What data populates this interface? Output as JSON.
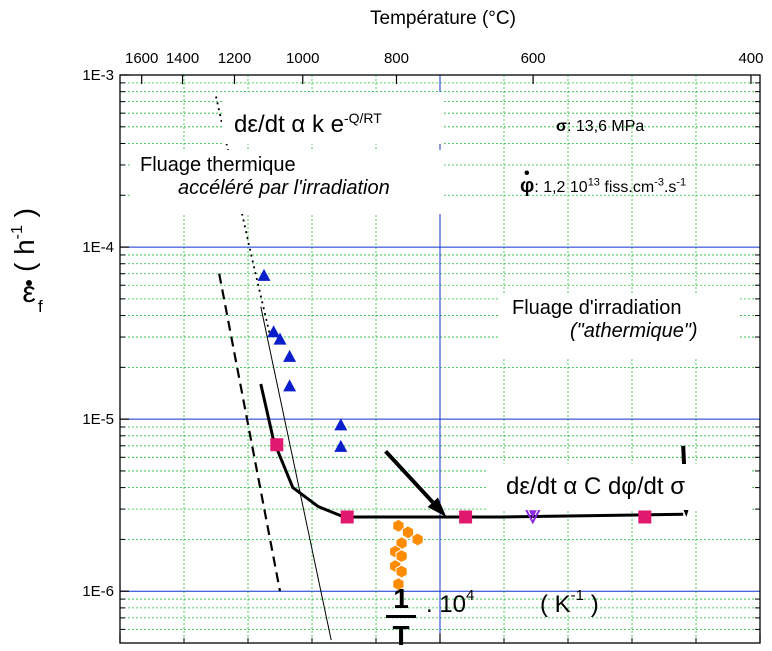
{
  "chart_data": {
    "type": "scatter",
    "title": "",
    "top_axis": {
      "label": "Température (°C)",
      "ticks": [
        1600,
        1400,
        1200,
        1000,
        800,
        600,
        400
      ]
    },
    "x_axis": {
      "scale": "linear",
      "range": [
        5,
        15
      ],
      "ticks": [
        "5",
        "10",
        "15"
      ],
      "label_numerator": "1",
      "label_denominator": "T",
      "label_suffix": ". 10",
      "label_power": "4",
      "label_unit": "( K",
      "label_unit_power": "-1",
      "label_unit_close": ")"
    },
    "y_axis": {
      "scale": "log",
      "range": [
        5e-07,
        0.001
      ],
      "ticks": [
        "1E-6",
        "1E-5",
        "1E-4",
        "1E-3"
      ],
      "label_symbol": "ε",
      "label_sub": "f",
      "label_unit": "( h",
      "label_unit_power": "-1",
      "label_unit_close": ")"
    },
    "grid": true,
    "series": [
      {
        "marker": "triangle-up",
        "color": "#0a1ecc",
        "points": [
          [
            7.25,
            6.8e-05
          ],
          [
            7.4,
            3.2e-05
          ],
          [
            7.5,
            2.9e-05
          ],
          [
            7.65,
            2.3e-05
          ],
          [
            7.65,
            1.55e-05
          ],
          [
            8.45,
            9.2e-06
          ],
          [
            8.45,
            6.9e-06
          ]
        ]
      },
      {
        "marker": "square",
        "color": "#e0186e",
        "points": [
          [
            7.45,
            7.1e-06
          ],
          [
            8.55,
            2.7e-06
          ],
          [
            10.4,
            2.7e-06
          ],
          [
            13.2,
            2.7e-06
          ]
        ]
      },
      {
        "marker": "triangle-down",
        "color": "#8a2be2",
        "points": [
          [
            11.45,
            2.8e-06
          ]
        ]
      },
      {
        "marker": "hexagon",
        "color": "#ff8c00",
        "points": [
          [
            9.35,
            2.4e-06
          ],
          [
            9.5,
            2.2e-06
          ],
          [
            9.65,
            2e-06
          ],
          [
            9.4,
            1.9e-06
          ],
          [
            9.3,
            1.7e-06
          ],
          [
            9.4,
            1.6e-06
          ],
          [
            9.3,
            1.4e-06
          ],
          [
            9.4,
            1.3e-06
          ],
          [
            9.35,
            1.1e-06
          ]
        ]
      }
    ],
    "lines": [
      {
        "name": "fit",
        "style": "thick-solid",
        "points": [
          [
            7.2,
            1.6e-05
          ],
          [
            7.4,
            7.5e-06
          ],
          [
            7.7,
            4e-06
          ],
          [
            8.1,
            3.1e-06
          ],
          [
            8.5,
            2.7e-06
          ],
          [
            9.5,
            2.7e-06
          ],
          [
            11,
            2.7e-06
          ],
          [
            13.8,
            2.8e-06
          ]
        ]
      },
      {
        "name": "dashed",
        "style": "dashed",
        "points": [
          [
            6.55,
            7e-05
          ],
          [
            7.5,
            1e-06
          ]
        ]
      },
      {
        "name": "thin",
        "style": "thin-solid",
        "points": [
          [
            7.2,
            4.5e-05
          ],
          [
            8.3,
            5.2e-07
          ]
        ]
      },
      {
        "name": "dotted",
        "style": "dotted",
        "points": [
          [
            6.5,
            0.00075
          ],
          [
            7.05,
            9e-05
          ],
          [
            7.35,
            3e-05
          ]
        ]
      }
    ],
    "arrows": [
      {
        "from": [
          9.15,
          6.5e-06
        ],
        "to": [
          10.1,
          2.7e-06
        ]
      },
      {
        "from": [
          13.8,
          7e-06
        ],
        "to": [
          13.85,
          2.7e-06
        ]
      }
    ],
    "annotations": {
      "thermal_formula": "dε/dt α k e",
      "thermal_formula_exp": "-Q/RT",
      "thermal_title": "Fluage thermique",
      "thermal_subtitle": "accéléré par l'irradiation",
      "sigma_symbol": "σ",
      "sigma_text": ": 13,6 MPa",
      "phi_symbol": "φ",
      "phi_text_a": ": 1,2 10",
      "phi_exp1": "13",
      "phi_text_b": " fiss.cm",
      "phi_exp2": "-3",
      "phi_text_c": ".s",
      "phi_exp3": "-1",
      "irr_title": "Fluage d'irradiation",
      "irr_subtitle": "(\"athermique\")",
      "irr_formula": "dε/dt α C dφ/dt σ"
    }
  }
}
